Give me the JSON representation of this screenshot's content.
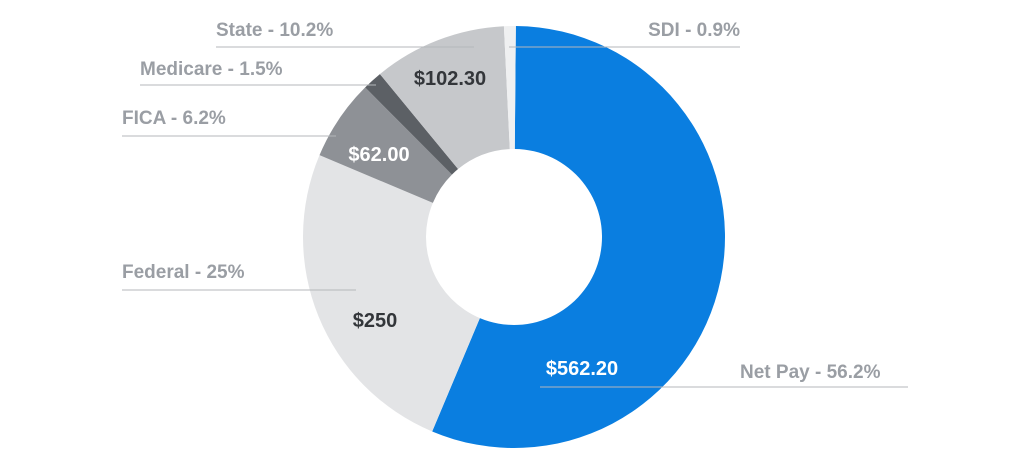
{
  "chart_data": {
    "type": "pie",
    "style": "donut",
    "slices": [
      {
        "label": "Net Pay",
        "percent": 56.2,
        "value_label": "$562.20",
        "callout": "Net Pay - 56.2%",
        "color": "#0a7ee0",
        "value_text_color": "#ffffff"
      },
      {
        "label": "Federal",
        "percent": 25,
        "value_label": "$250",
        "callout": "Federal - 25%",
        "color": "#e3e4e6",
        "value_text_color": "#33363a"
      },
      {
        "label": "FICA",
        "percent": 6.2,
        "value_label": "$62.00",
        "callout": "FICA - 6.2%",
        "color": "#8e9196",
        "value_text_color": "#ffffff"
      },
      {
        "label": "Medicare",
        "percent": 1.5,
        "value_label": "",
        "callout": "Medicare - 1.5%",
        "color": "#5c6065",
        "value_text_color": "#ffffff"
      },
      {
        "label": "State",
        "percent": 10.2,
        "value_label": "$102.30",
        "callout": "State - 10.2%",
        "color": "#c6c8cb",
        "value_text_color": "#33363a"
      },
      {
        "label": "SDI",
        "percent": 0.9,
        "value_label": "",
        "callout": "SDI - 0.9%",
        "color": "#eff0f1",
        "value_text_color": "#33363a"
      }
    ]
  }
}
